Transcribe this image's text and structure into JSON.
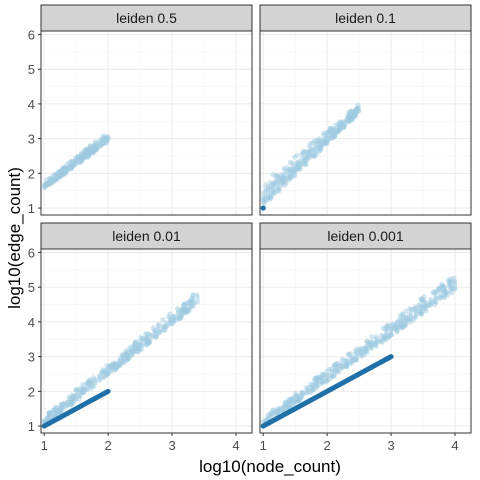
{
  "chart_data": {
    "type": "scatter",
    "xlabel": "log10(node_count)",
    "ylabel": "log10(edge_count)",
    "xlim": [
      0.95,
      4.25
    ],
    "ylim": [
      0.8,
      6.1
    ],
    "x_ticks": [
      1,
      2,
      3,
      4
    ],
    "y_ticks": [
      1,
      2,
      3,
      4,
      5,
      6
    ],
    "grid": true,
    "colors": {
      "dense": "#1f6fa8",
      "sparse": "#9ecae1",
      "strip": "#d3d3d3"
    },
    "panels": [
      {
        "title": "leiden 0.5",
        "band": {
          "x_start": 1.0,
          "x_end": 2.0,
          "y_low_start": 1.55,
          "y_low_end": 2.9,
          "y_high_start": 1.75,
          "y_high_end": 3.2
        },
        "dense_points": []
      },
      {
        "title": "leiden 0.1",
        "band": {
          "x_start": 1.0,
          "x_end": 2.5,
          "y_low_start": 1.05,
          "y_low_end": 3.75,
          "y_high_start": 1.75,
          "y_high_end": 4.0
        },
        "dense_points": [
          [
            1.0,
            1.0
          ]
        ]
      },
      {
        "title": "leiden 0.01",
        "band": {
          "x_start": 1.0,
          "x_end": 3.4,
          "y_low_start": 1.0,
          "y_low_end": 4.5,
          "y_high_start": 1.3,
          "y_high_end": 4.9
        },
        "dense_line": {
          "x_start": 1.0,
          "x_end": 2.0,
          "y_start": 1.0,
          "y_end": 2.0
        }
      },
      {
        "title": "leiden 0.001",
        "band": {
          "x_start": 1.0,
          "x_end": 4.0,
          "y_low_start": 1.0,
          "y_low_end": 4.9,
          "y_high_start": 1.25,
          "y_high_end": 5.4
        },
        "dense_line": {
          "x_start": 1.0,
          "x_end": 3.0,
          "y_start": 1.0,
          "y_end": 3.0
        }
      }
    ]
  }
}
